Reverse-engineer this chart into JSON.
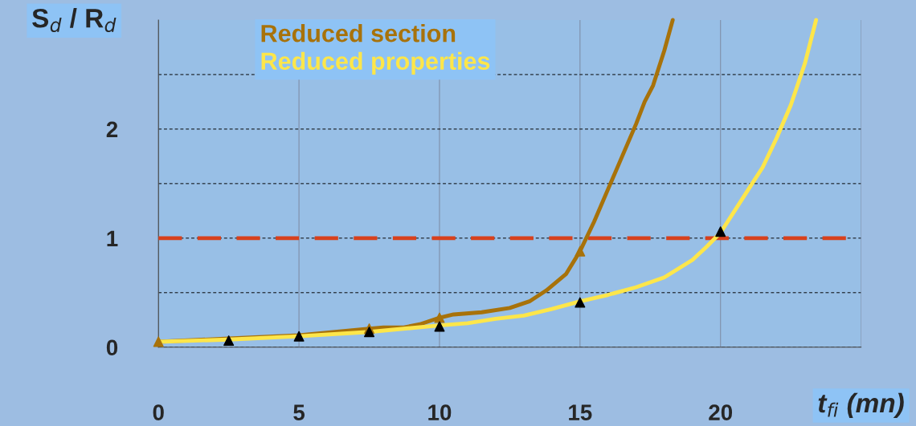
{
  "chart_data": {
    "type": "line",
    "xlabel": "t$_{fi}$ (mn)",
    "ylabel": "S$_{d}$ / R$_{d}$",
    "xlim": [
      0,
      25
    ],
    "xticks": [
      0,
      5,
      10,
      15,
      20,
      {
        "value": 25,
        "label": null
      }
    ],
    "ylim": [
      0,
      3
    ],
    "yticks": [
      0,
      {
        "value": 0.5,
        "label": null
      },
      1,
      {
        "value": 1.5,
        "label": null
      },
      2,
      {
        "value": 2.5,
        "label": null
      }
    ],
    "grid": true,
    "legend": "top left",
    "line_style": "solid",
    "ref_lines": [
      {
        "axis": "y",
        "value": 1,
        "color": "#d8401c",
        "line_style": "dashed"
      }
    ],
    "series": [
      {
        "type": "scatter",
        "color": "#a8720a",
        "marker": "triangle",
        "x": [
          0,
          7.5,
          10,
          15
        ],
        "values": [
          0.05,
          0.17,
          0.27,
          0.88
        ]
      },
      {
        "name": "Reduced section",
        "color": "#a8720a",
        "marker": "none",
        "x": [
          0,
          2.5,
          5,
          7.5,
          8,
          8.7,
          9.3,
          10,
          10.5,
          11.5,
          12.5,
          13.2,
          13.8,
          14.5,
          15,
          15.5,
          16,
          16.5,
          17,
          17.3,
          17.6,
          18,
          18.3
        ],
        "values": [
          0.05,
          0.08,
          0.11,
          0.17,
          0.18,
          0.18,
          0.21,
          0.27,
          0.3,
          0.32,
          0.36,
          0.42,
          0.52,
          0.67,
          0.88,
          1.15,
          1.45,
          1.75,
          2.05,
          2.25,
          2.4,
          2.72,
          3.0
        ]
      },
      {
        "name": "Reduced properties",
        "color": "#fde64a",
        "marker": "none",
        "x": [
          0,
          2.5,
          5,
          7.5,
          10,
          11,
          12,
          13,
          14,
          15,
          16,
          17,
          18,
          19,
          19.5,
          20,
          20.5,
          21,
          21.5,
          22,
          22.5,
          23,
          23.4
        ],
        "values": [
          0.05,
          0.07,
          0.1,
          0.14,
          0.2,
          0.22,
          0.26,
          0.29,
          0.35,
          0.42,
          0.48,
          0.55,
          0.64,
          0.8,
          0.92,
          1.05,
          1.25,
          1.45,
          1.65,
          1.92,
          2.22,
          2.6,
          3.0
        ]
      },
      {
        "type": "scatter",
        "color": "#000000",
        "marker": "triangle",
        "x": [
          2.5,
          5,
          7.5,
          10,
          15,
          20
        ],
        "values": [
          0.06,
          0.1,
          0.14,
          0.19,
          0.41,
          1.06
        ]
      }
    ]
  }
}
